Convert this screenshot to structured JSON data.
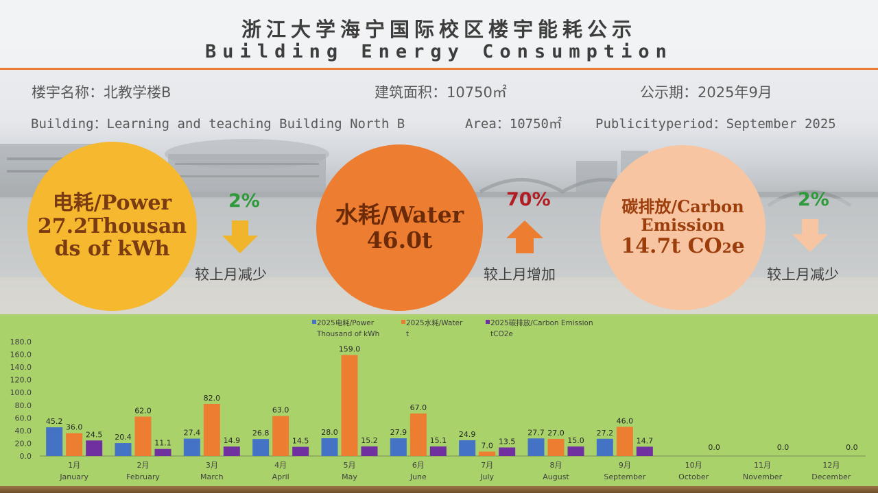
{
  "title": {
    "cn": "浙江大学海宁国际校区楼宇能耗公示",
    "en": "Building Energy Consumption"
  },
  "info": {
    "building_cn": "楼宇名称：北教学楼B",
    "area_cn": "建筑面积：10750㎡",
    "period_cn": "公示期：2025年9月",
    "building_en": "Building：Learning and teaching Building North B",
    "area_en": "Area：10750㎡",
    "period_en": "Publicityperiod：September 2025"
  },
  "summary": {
    "power": {
      "line1": "电耗/Power",
      "line2": "27.2Thousan",
      "line3": "ds of kWh",
      "change": "2%",
      "direction": "down",
      "compare": "较上月减少",
      "color": "#f5b82e"
    },
    "water": {
      "line1": "水耗/Water",
      "line2": "46.0t",
      "change": "70%",
      "direction": "up",
      "compare": "较上月增加",
      "color": "#ed7d31"
    },
    "carbon": {
      "line1": "碳排放/Carbon",
      "line2": "Emission",
      "line3": "14.7t CO2e",
      "change": "2%",
      "direction": "down",
      "compare": "较上月减少",
      "color": "#f8c5a3"
    }
  },
  "chart_data": {
    "type": "bar",
    "categories": [
      [
        "1月",
        "January"
      ],
      [
        "2月",
        "February"
      ],
      [
        "3月",
        "March"
      ],
      [
        "4月",
        "April"
      ],
      [
        "5月",
        "May"
      ],
      [
        "6月",
        "June"
      ],
      [
        "7月",
        "July"
      ],
      [
        "8月",
        "August"
      ],
      [
        "9月",
        "September"
      ],
      [
        "10月",
        "October"
      ],
      [
        "11月",
        "November"
      ],
      [
        "12月",
        "December"
      ]
    ],
    "series": [
      {
        "name": [
          "2025电耗/Power",
          "Thousand of kWh"
        ],
        "color": "#4472c4",
        "values": [
          45.2,
          20.4,
          27.4,
          26.8,
          28.0,
          27.9,
          24.9,
          27.7,
          27.2,
          null,
          null,
          null
        ]
      },
      {
        "name": [
          "2025水耗/Water",
          "t"
        ],
        "color": "#ed7d31",
        "values": [
          36.0,
          62.0,
          82.0,
          63.0,
          159.0,
          67.0,
          7.0,
          27.0,
          46.0,
          null,
          null,
          null
        ]
      },
      {
        "name": [
          "2025碳排放/Carbon Emission",
          "tCO2e"
        ],
        "color": "#7030a0",
        "values": [
          24.5,
          11.1,
          14.9,
          14.5,
          15.2,
          15.1,
          13.5,
          15.0,
          14.7,
          null,
          null,
          null
        ]
      }
    ],
    "empty_month_label": "0.0",
    "y_ticks": [
      "0.0",
      "20.0",
      "40.0",
      "60.0",
      "80.0",
      "100.0",
      "120.0",
      "140.0",
      "160.0",
      "180.0"
    ],
    "ylim": [
      0,
      180
    ],
    "grid": false,
    "legend": "top"
  }
}
